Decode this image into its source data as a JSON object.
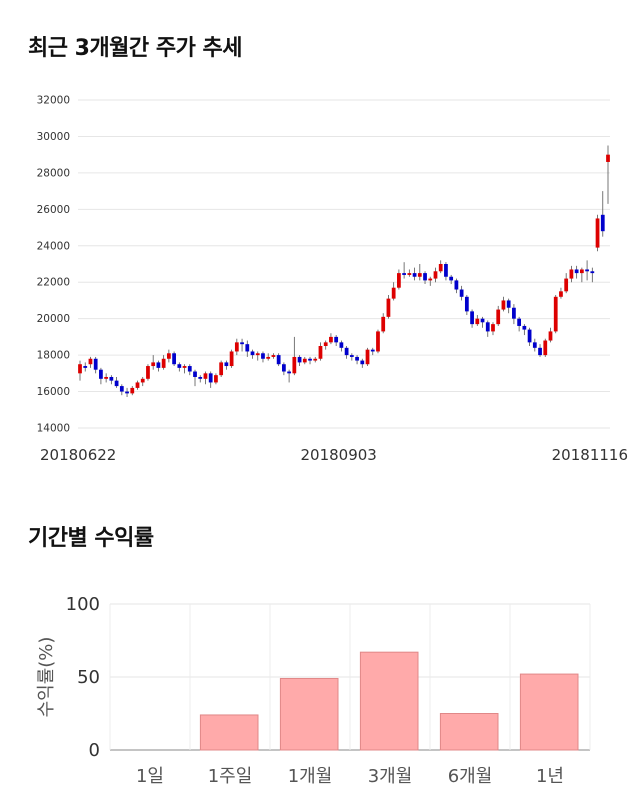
{
  "sections": {
    "price_title": "최근 3개월간 주가 추세",
    "return_title": "기간별 수익률"
  },
  "chart_data": [
    {
      "type": "candlestick",
      "title": "최근 3개월간 주가 추세",
      "ylim": [
        14000,
        32000
      ],
      "yticks": [
        14000,
        16000,
        18000,
        20000,
        22000,
        24000,
        26000,
        28000,
        30000,
        32000
      ],
      "xtick_labels": [
        "20180622",
        "20180903",
        "20181116"
      ],
      "grid": true,
      "up_color": "#dd0000",
      "down_color": "#0000cc",
      "candles": [
        [
          17000,
          17500,
          16600,
          17700
        ],
        [
          17400,
          17300,
          17100,
          17600
        ],
        [
          17500,
          17800,
          17300,
          17900
        ],
        [
          17800,
          17200,
          17000,
          17900
        ],
        [
          17200,
          16700,
          16400,
          17300
        ],
        [
          16700,
          16800,
          16500,
          17000
        ],
        [
          16800,
          16600,
          16400,
          16900
        ],
        [
          16600,
          16300,
          16200,
          16800
        ],
        [
          16300,
          16000,
          15800,
          16400
        ],
        [
          16000,
          15900,
          15700,
          16200
        ],
        [
          15900,
          16200,
          15800,
          16300
        ],
        [
          16200,
          16500,
          16100,
          16600
        ],
        [
          16500,
          16700,
          16300,
          16800
        ],
        [
          16700,
          17400,
          16600,
          17500
        ],
        [
          17400,
          17600,
          17200,
          18000
        ],
        [
          17600,
          17300,
          17100,
          17700
        ],
        [
          17300,
          17800,
          17200,
          18000
        ],
        [
          17800,
          18100,
          17600,
          18300
        ],
        [
          18100,
          17500,
          17400,
          18200
        ],
        [
          17500,
          17300,
          17100,
          17600
        ],
        [
          17300,
          17400,
          17000,
          17500
        ],
        [
          17400,
          17100,
          16900,
          17500
        ],
        [
          17100,
          16800,
          16300,
          17200
        ],
        [
          16800,
          16700,
          16500,
          16900
        ],
        [
          16700,
          17000,
          16400,
          17100
        ],
        [
          17000,
          16500,
          16200,
          17100
        ],
        [
          16500,
          16900,
          16400,
          17000
        ],
        [
          16900,
          17600,
          16800,
          17700
        ],
        [
          17600,
          17400,
          17200,
          17700
        ],
        [
          17400,
          18200,
          17300,
          18300
        ],
        [
          18200,
          18700,
          18000,
          18900
        ],
        [
          18700,
          18600,
          18200,
          18900
        ],
        [
          18600,
          18200,
          17900,
          18800
        ],
        [
          18200,
          18000,
          17800,
          18300
        ],
        [
          18000,
          18100,
          17700,
          18200
        ],
        [
          18100,
          17800,
          17600,
          18200
        ],
        [
          17800,
          17900,
          17700,
          18100
        ],
        [
          17900,
          18000,
          17800,
          18100
        ],
        [
          18000,
          17500,
          17400,
          18100
        ],
        [
          17500,
          17100,
          16900,
          17600
        ],
        [
          17100,
          17000,
          16500,
          17200
        ],
        [
          17000,
          17900,
          16900,
          19000
        ],
        [
          17900,
          17600,
          17400,
          18000
        ],
        [
          17600,
          17800,
          17500,
          17900
        ],
        [
          17800,
          17700,
          17500,
          17900
        ],
        [
          17700,
          17800,
          17600,
          17900
        ],
        [
          17800,
          18500,
          17700,
          18700
        ],
        [
          18500,
          18700,
          18300,
          18800
        ],
        [
          18700,
          19000,
          18600,
          19200
        ],
        [
          19000,
          18700,
          18500,
          19100
        ],
        [
          18700,
          18400,
          18200,
          18800
        ],
        [
          18400,
          18000,
          17800,
          18500
        ],
        [
          18000,
          17900,
          17700,
          18100
        ],
        [
          17900,
          17700,
          17500,
          18000
        ],
        [
          17700,
          17500,
          17300,
          17800
        ],
        [
          17500,
          18300,
          17400,
          18400
        ],
        [
          18300,
          18200,
          18000,
          18400
        ],
        [
          18200,
          19300,
          18100,
          19400
        ],
        [
          19300,
          20100,
          19200,
          20300
        ],
        [
          20100,
          21100,
          20000,
          21300
        ],
        [
          21100,
          21700,
          21000,
          22000
        ],
        [
          21700,
          22500,
          21600,
          22700
        ],
        [
          22500,
          22400,
          22200,
          23100
        ],
        [
          22400,
          22500,
          22300,
          22700
        ],
        [
          22500,
          22300,
          22100,
          22800
        ],
        [
          22300,
          22500,
          22100,
          23000
        ],
        [
          22500,
          22100,
          21900,
          22600
        ],
        [
          22100,
          22200,
          21800,
          22300
        ],
        [
          22200,
          22600,
          22000,
          22800
        ],
        [
          22600,
          23000,
          22500,
          23200
        ],
        [
          23000,
          22300,
          22100,
          23100
        ],
        [
          22300,
          22100,
          21900,
          22400
        ],
        [
          22100,
          21600,
          21400,
          22200
        ],
        [
          21600,
          21200,
          21000,
          21800
        ],
        [
          21200,
          20400,
          20200,
          21300
        ],
        [
          20400,
          19700,
          19500,
          20500
        ],
        [
          19700,
          20000,
          19600,
          20200
        ],
        [
          20000,
          19800,
          19500,
          20100
        ],
        [
          19800,
          19300,
          19000,
          19900
        ],
        [
          19300,
          19700,
          19100,
          19800
        ],
        [
          19700,
          20500,
          19600,
          20700
        ],
        [
          20500,
          21000,
          20400,
          21200
        ],
        [
          21000,
          20600,
          20300,
          21100
        ],
        [
          20600,
          20000,
          19700,
          20800
        ],
        [
          20000,
          19600,
          19300,
          20100
        ],
        [
          19600,
          19400,
          19100,
          19700
        ],
        [
          19400,
          18700,
          18500,
          19500
        ],
        [
          18700,
          18400,
          18200,
          18900
        ],
        [
          18400,
          18000,
          17900,
          18600
        ],
        [
          18000,
          18800,
          17900,
          18900
        ],
        [
          18800,
          19300,
          18700,
          19500
        ],
        [
          19300,
          21200,
          19200,
          21300
        ],
        [
          21200,
          21500,
          21100,
          21700
        ],
        [
          21500,
          22200,
          21400,
          22500
        ],
        [
          22200,
          22700,
          22000,
          22900
        ],
        [
          22700,
          22500,
          22200,
          22900
        ],
        [
          22500,
          22700,
          22000,
          22800
        ],
        [
          22700,
          22600,
          22100,
          23200
        ],
        [
          22600,
          22500,
          22000,
          22800
        ],
        [
          23900,
          25500,
          23700,
          25700
        ],
        [
          25700,
          24800,
          24500,
          27000
        ],
        [
          28600,
          29000,
          26300,
          29500
        ]
      ]
    },
    {
      "type": "bar",
      "ylabel": "수익률(%)",
      "ylim": [
        0,
        100
      ],
      "yticks": [
        0,
        50,
        100
      ],
      "categories": [
        "1일",
        "1주일",
        "1개월",
        "3개월",
        "6개월",
        "1년"
      ],
      "values": [
        0,
        24,
        49,
        67,
        25,
        52
      ],
      "bar_color": "#ffaaaa",
      "bar_edge": "#e08888",
      "grid": true
    }
  ]
}
